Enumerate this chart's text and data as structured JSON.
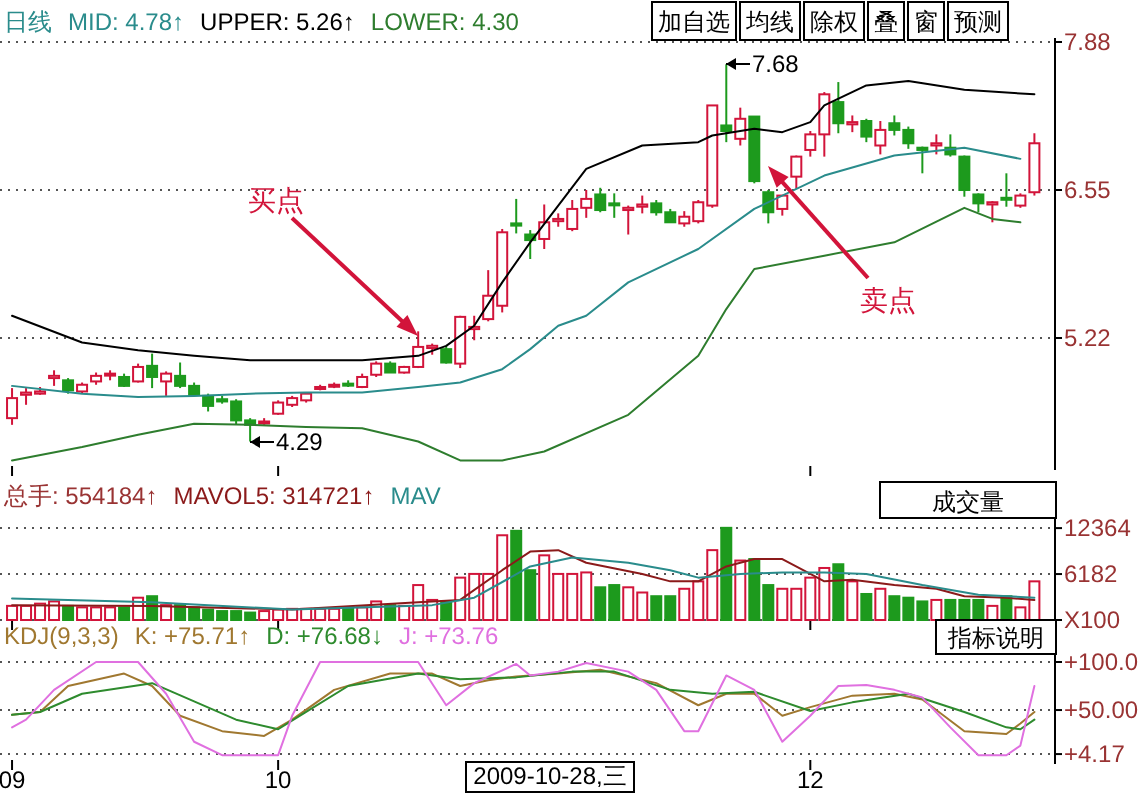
{
  "chart_data": [
    {
      "type": "candlestick",
      "title": "日线",
      "tick_labels": "y",
      "grid": "y",
      "categories": [
        "09",
        null,
        null,
        null,
        null,
        null,
        null,
        null,
        null,
        null,
        null,
        null,
        null,
        null,
        null,
        null,
        null,
        null,
        null,
        "10",
        null,
        null,
        null,
        null,
        null,
        null,
        null,
        null,
        null,
        null,
        null,
        null,
        null,
        null,
        null,
        null,
        null,
        null,
        null,
        null,
        null,
        null,
        null,
        null,
        null,
        null,
        null,
        null,
        null,
        null,
        null,
        null,
        null,
        null,
        null,
        null,
        null,
        "12",
        null,
        null,
        null,
        null,
        null,
        null,
        null,
        null,
        null,
        null,
        null,
        null,
        null,
        null,
        null,
        null
      ],
      "ylim": [
        4.07,
        7.88
      ],
      "yticks": [
        5.22,
        6.55,
        7.88
      ],
      "ohlc": [
        [
          4.5,
          4.77,
          4.44,
          4.68
        ],
        [
          4.71,
          4.77,
          4.62,
          4.73
        ],
        [
          4.72,
          4.78,
          4.71,
          4.74
        ],
        [
          4.86,
          4.93,
          4.79,
          4.88
        ],
        [
          4.84,
          4.86,
          4.72,
          4.75
        ],
        [
          4.74,
          4.82,
          4.72,
          4.8
        ],
        [
          4.83,
          4.91,
          4.8,
          4.88
        ],
        [
          4.89,
          4.93,
          4.84,
          4.9
        ],
        [
          4.87,
          4.9,
          4.78,
          4.79
        ],
        [
          4.83,
          4.99,
          4.82,
          4.96
        ],
        [
          4.97,
          5.08,
          4.77,
          4.87
        ],
        [
          4.83,
          4.92,
          4.7,
          4.9
        ],
        [
          4.88,
          5.0,
          4.77,
          4.79
        ],
        [
          4.79,
          4.82,
          4.7,
          4.71
        ],
        [
          4.7,
          4.72,
          4.56,
          4.61
        ],
        [
          4.67,
          4.7,
          4.63,
          4.65
        ],
        [
          4.65,
          4.67,
          4.44,
          4.48
        ],
        [
          4.48,
          4.5,
          4.29,
          4.44
        ],
        [
          4.46,
          4.5,
          4.44,
          4.47
        ],
        [
          4.54,
          4.66,
          4.53,
          4.64
        ],
        [
          4.62,
          4.7,
          4.6,
          4.68
        ],
        [
          4.66,
          4.72,
          4.64,
          4.72
        ],
        [
          4.77,
          4.8,
          4.75,
          4.78
        ],
        [
          4.79,
          4.82,
          4.77,
          4.8
        ],
        [
          4.81,
          4.84,
          4.78,
          4.8
        ],
        [
          4.78,
          4.9,
          4.77,
          4.87
        ],
        [
          4.89,
          5.01,
          4.87,
          4.99
        ],
        [
          4.99,
          5.01,
          4.91,
          4.91
        ],
        [
          4.91,
          4.97,
          4.9,
          4.96
        ],
        [
          4.96,
          5.28,
          4.95,
          5.14
        ],
        [
          5.13,
          5.17,
          5.07,
          5.15
        ],
        [
          5.12,
          5.15,
          4.99,
          5.0
        ],
        [
          4.99,
          5.42,
          4.95,
          5.41
        ],
        [
          5.3,
          5.42,
          5.2,
          5.32
        ],
        [
          5.39,
          5.83,
          5.37,
          5.6
        ],
        [
          5.51,
          6.2,
          5.45,
          6.17
        ],
        [
          6.25,
          6.47,
          6.16,
          6.23
        ],
        [
          6.15,
          6.19,
          5.93,
          6.1
        ],
        [
          6.11,
          6.42,
          6.02,
          6.26
        ],
        [
          6.27,
          6.34,
          6.22,
          6.29
        ],
        [
          6.2,
          6.46,
          6.18,
          6.38
        ],
        [
          6.39,
          6.55,
          6.3,
          6.47
        ],
        [
          6.51,
          6.57,
          6.35,
          6.37
        ],
        [
          6.43,
          6.52,
          6.3,
          6.42
        ],
        [
          6.37,
          6.41,
          6.15,
          6.39
        ],
        [
          6.4,
          6.5,
          6.34,
          6.42
        ],
        [
          6.43,
          6.46,
          6.32,
          6.35
        ],
        [
          6.35,
          6.38,
          6.26,
          6.26
        ],
        [
          6.25,
          6.36,
          6.22,
          6.31
        ],
        [
          6.27,
          6.46,
          6.25,
          6.44
        ],
        [
          6.41,
          7.31,
          6.39,
          7.31
        ],
        [
          7.13,
          7.68,
          6.98,
          7.08
        ],
        [
          7.01,
          7.29,
          6.95,
          7.19
        ],
        [
          7.21,
          7.21,
          6.61,
          6.63
        ],
        [
          6.53,
          6.55,
          6.25,
          6.35
        ],
        [
          6.38,
          6.5,
          6.32,
          6.5
        ],
        [
          6.67,
          6.86,
          6.56,
          6.85
        ],
        [
          6.91,
          7.08,
          6.85,
          7.05
        ],
        [
          7.05,
          7.43,
          6.85,
          7.41
        ],
        [
          7.34,
          7.52,
          7.06,
          7.15
        ],
        [
          7.14,
          7.22,
          7.07,
          7.16
        ],
        [
          7.17,
          7.19,
          6.98,
          7.03
        ],
        [
          6.95,
          7.17,
          6.87,
          7.09
        ],
        [
          7.15,
          7.22,
          7.04,
          7.09
        ],
        [
          7.09,
          7.12,
          6.92,
          6.97
        ],
        [
          6.93,
          6.94,
          6.7,
          6.91
        ],
        [
          6.95,
          7.05,
          6.87,
          6.97
        ],
        [
          6.93,
          7.05,
          6.85,
          6.87
        ],
        [
          6.85,
          6.86,
          6.49,
          6.55
        ],
        [
          6.51,
          6.52,
          6.35,
          6.43
        ],
        [
          6.42,
          6.45,
          6.26,
          6.44
        ],
        [
          6.48,
          6.7,
          6.4,
          6.47
        ],
        [
          6.41,
          6.52,
          6.39,
          6.5
        ],
        [
          6.53,
          7.06,
          6.5,
          6.97
        ]
      ],
      "colors": [
        "#d2143a",
        "#d2143a",
        "#d2143a",
        "#d2143a",
        "#1d9a1d",
        "#d2143a",
        "#d2143a",
        "#d2143a",
        "#1d9a1d",
        "#d2143a",
        "#1d9a1d",
        "#d2143a",
        "#1d9a1d",
        "#1d9a1d",
        "#1d9a1d",
        "#1d9a1d",
        "#1d9a1d",
        "#1d9a1d",
        "#d2143a",
        "#d2143a",
        "#d2143a",
        "#d2143a",
        "#d2143a",
        "#d2143a",
        "#1d9a1d",
        "#d2143a",
        "#d2143a",
        "#1d9a1d",
        "#d2143a",
        "#d2143a",
        "#d2143a",
        "#1d9a1d",
        "#d2143a",
        "#d2143a",
        "#d2143a",
        "#d2143a",
        "#1d9a1d",
        "#1d9a1d",
        "#d2143a",
        "#d2143a",
        "#d2143a",
        "#d2143a",
        "#1d9a1d",
        "#1d9a1d",
        "#d2143a",
        "#d2143a",
        "#1d9a1d",
        "#1d9a1d",
        "#d2143a",
        "#d2143a",
        "#d2143a",
        "#1d9a1d",
        "#d2143a",
        "#1d9a1d",
        "#1d9a1d",
        "#d2143a",
        "#d2143a",
        "#d2143a",
        "#d2143a",
        "#1d9a1d",
        "#d2143a",
        "#1d9a1d",
        "#d2143a",
        "#1d9a1d",
        "#1d9a1d",
        "#1d9a1d",
        "#d2143a",
        "#1d9a1d",
        "#1d9a1d",
        "#1d9a1d",
        "#d2143a",
        "#1d9a1d",
        "#d2143a",
        "#d2143a"
      ],
      "series": [
        {
          "type": "line",
          "color": "#000000",
          "values": [
            5.42,
            null,
            null,
            null,
            null,
            5.18,
            null,
            null,
            null,
            5.11,
            null,
            null,
            null,
            5.06,
            null,
            null,
            null,
            5.02,
            null,
            null,
            null,
            5.02,
            null,
            null,
            null,
            5.02,
            null,
            null,
            null,
            5.06,
            null,
            5.15,
            null,
            5.33,
            null,
            5.72,
            null,
            6.08,
            null,
            6.41,
            null,
            6.74,
            null,
            null,
            null,
            6.95,
            null,
            null,
            null,
            6.98,
            7.04,
            null,
            null,
            7.1,
            null,
            7.07,
            null,
            7.16,
            7.31,
            null,
            null,
            7.49,
            null,
            null,
            7.53,
            null,
            null,
            null,
            7.45,
            null,
            null,
            null,
            null,
            7.41
          ]
        },
        {
          "type": "line",
          "color": "#2a8c8c",
          "values": [
            4.79,
            null,
            null,
            null,
            null,
            4.72,
            null,
            null,
            null,
            4.69,
            null,
            null,
            null,
            4.7,
            null,
            null,
            null,
            4.72,
            null,
            null,
            null,
            4.73,
            null,
            null,
            null,
            4.73,
            null,
            null,
            null,
            4.78,
            null,
            null,
            4.82,
            null,
            null,
            4.94,
            null,
            5.12,
            null,
            5.33,
            null,
            5.42,
            null,
            null,
            5.72,
            null,
            null,
            null,
            null,
            6.02,
            null,
            null,
            null,
            6.38,
            null,
            null,
            null,
            null,
            6.68,
            null,
            null,
            null,
            null,
            6.86,
            null,
            null,
            null,
            null,
            6.93,
            null,
            null,
            null,
            6.83,
            null
          ]
        },
        {
          "type": "line",
          "color": "#2e7d2e",
          "values": [
            4.12,
            null,
            null,
            null,
            null,
            4.24,
            null,
            null,
            null,
            4.35,
            null,
            null,
            null,
            4.45,
            null,
            null,
            null,
            4.44,
            null,
            null,
            null,
            4.42,
            null,
            null,
            null,
            4.41,
            null,
            null,
            null,
            4.29,
            null,
            null,
            4.12,
            null,
            null,
            4.12,
            null,
            null,
            4.2,
            null,
            null,
            null,
            null,
            null,
            4.53,
            null,
            null,
            null,
            null,
            5.06,
            null,
            5.48,
            null,
            5.84,
            null,
            null,
            null,
            null,
            5.96,
            null,
            null,
            null,
            null,
            6.08,
            null,
            null,
            null,
            null,
            6.39,
            null,
            6.29,
            null,
            6.26,
            null
          ]
        }
      ],
      "annotations": [
        "MID: 4.78↑",
        "UPPER: 5.26↑",
        "LOWER: 4.30",
        "加自选",
        "均线",
        "除权",
        "叠",
        "窗",
        "预测",
        "7.68",
        "4.29",
        "买点",
        "卖点"
      ]
    },
    {
      "type": "bar",
      "tick_labels": "y",
      "grid": "y",
      "categories": [
        "09",
        null,
        null,
        null,
        null,
        null,
        null,
        null,
        null,
        null,
        null,
        null,
        null,
        null,
        null,
        null,
        null,
        null,
        null,
        "10",
        null,
        null,
        null,
        null,
        null,
        null,
        null,
        null,
        null,
        null,
        null,
        null,
        null,
        null,
        null,
        null,
        null,
        null,
        null,
        null,
        null,
        null,
        null,
        null,
        null,
        null,
        null,
        null,
        null,
        null,
        null,
        null,
        null,
        null,
        null,
        null,
        null,
        "12",
        null,
        null,
        null,
        null,
        null,
        null,
        null,
        null,
        null,
        null,
        null,
        null,
        null,
        null,
        null,
        null
      ],
      "ylim": [
        0,
        14800
      ],
      "yticks": [
        {
          "value": 0,
          "label": "X100"
        },
        6182,
        12364
      ],
      "series": [
        {
          "type": "bar",
          "values": [
            1900,
            1900,
            2200,
            2500,
            1900,
            1700,
            1700,
            1700,
            1700,
            3000,
            3200,
            2000,
            2000,
            1700,
            1400,
            1200,
            1200,
            1000,
            1200,
            1400,
            1500,
            1500,
            1500,
            1500,
            1500,
            1700,
            2500,
            2000,
            1900,
            4700,
            2700,
            2500,
            5700,
            6200,
            6200,
            11400,
            12000,
            6700,
            8700,
            6200,
            6200,
            6400,
            4400,
            4700,
            4400,
            3700,
            3200,
            3200,
            4200,
            5200,
            9400,
            12400,
            8000,
            8200,
            4700,
            4200,
            4200,
            5700,
            7000,
            7500,
            5200,
            3500,
            4200,
            3200,
            3000,
            2500,
            2700,
            2700,
            2700,
            2700,
            1900,
            3200,
            1700,
            5200
          ],
          "colors": [
            "#d2143a",
            "#d2143a",
            "#d2143a",
            "#d2143a",
            "#1d9a1d",
            "#d2143a",
            "#d2143a",
            "#d2143a",
            "#1d9a1d",
            "#d2143a",
            "#1d9a1d",
            "#d2143a",
            "#1d9a1d",
            "#1d9a1d",
            "#1d9a1d",
            "#1d9a1d",
            "#1d9a1d",
            "#1d9a1d",
            "#d2143a",
            "#d2143a",
            "#d2143a",
            "#d2143a",
            "#d2143a",
            "#d2143a",
            "#1d9a1d",
            "#d2143a",
            "#d2143a",
            "#1d9a1d",
            "#d2143a",
            "#d2143a",
            "#d2143a",
            "#1d9a1d",
            "#d2143a",
            "#d2143a",
            "#d2143a",
            "#d2143a",
            "#1d9a1d",
            "#1d9a1d",
            "#d2143a",
            "#d2143a",
            "#d2143a",
            "#d2143a",
            "#1d9a1d",
            "#1d9a1d",
            "#d2143a",
            "#d2143a",
            "#1d9a1d",
            "#1d9a1d",
            "#d2143a",
            "#d2143a",
            "#d2143a",
            "#1d9a1d",
            "#d2143a",
            "#1d9a1d",
            "#1d9a1d",
            "#d2143a",
            "#d2143a",
            "#d2143a",
            "#d2143a",
            "#1d9a1d",
            "#d2143a",
            "#1d9a1d",
            "#d2143a",
            "#1d9a1d",
            "#1d9a1d",
            "#1d9a1d",
            "#d2143a",
            "#1d9a1d",
            "#1d9a1d",
            "#1d9a1d",
            "#d2143a",
            "#1d9a1d",
            "#d2143a",
            "#d2143a"
          ]
        },
        {
          "type": "line",
          "color": "#8b1a1a",
          "values": [
            2000,
            null,
            null,
            null,
            null,
            null,
            null,
            null,
            null,
            null,
            1900,
            null,
            null,
            null,
            null,
            null,
            null,
            null,
            null,
            null,
            1400,
            null,
            null,
            null,
            null,
            null,
            null,
            null,
            null,
            2400,
            null,
            null,
            2700,
            null,
            null,
            6700,
            null,
            9200,
            null,
            9400,
            null,
            7700,
            null,
            null,
            null,
            6200,
            null,
            5200,
            null,
            5200,
            null,
            7200,
            null,
            8200,
            null,
            8200,
            null,
            6200,
            5200,
            null,
            5400,
            null,
            null,
            4700,
            null,
            null,
            4200,
            null,
            3200,
            null,
            null,
            3000,
            null,
            2700
          ]
        },
        {
          "type": "line",
          "color": "#2a8c8c",
          "values": [
            2900,
            null,
            null,
            null,
            null,
            null,
            null,
            null,
            null,
            null,
            2400,
            null,
            null,
            null,
            null,
            null,
            null,
            null,
            null,
            null,
            1400,
            null,
            null,
            null,
            null,
            null,
            null,
            null,
            null,
            null,
            2000,
            null,
            null,
            3000,
            null,
            null,
            null,
            7200,
            null,
            null,
            8400,
            null,
            null,
            null,
            7700,
            null,
            null,
            6700,
            null,
            5700,
            null,
            null,
            6200,
            null,
            null,
            6400,
            null,
            null,
            6400,
            null,
            null,
            6200,
            null,
            null,
            null,
            4700,
            null,
            null,
            null,
            3400,
            null,
            null,
            null,
            3000
          ]
        }
      ],
      "annotations": [
        "总手: 554184↑",
        "MAVOL5: 314721↑",
        "MAV",
        "成交量"
      ]
    },
    {
      "type": "line",
      "grid": "y",
      "categories": [
        "09",
        null,
        null,
        null,
        null,
        null,
        null,
        null,
        null,
        null,
        null,
        null,
        null,
        null,
        null,
        null,
        null,
        null,
        null,
        "10",
        null,
        null,
        null,
        null,
        null,
        null,
        null,
        null,
        null,
        null,
        null,
        null,
        null,
        null,
        null,
        null,
        null,
        null,
        null,
        null,
        null,
        null,
        null,
        null,
        null,
        null,
        null,
        null,
        null,
        null,
        null,
        null,
        null,
        null,
        null,
        null,
        null,
        "12",
        null,
        null,
        null,
        null,
        null,
        null,
        null,
        null,
        null,
        null,
        null,
        null,
        null,
        null,
        null,
        null
      ],
      "ylim": [
        -2,
        112.5
      ],
      "yticks": [
        {
          "value": 4.17,
          "label": "+4.17"
        },
        {
          "value": 50,
          "label": "+50.00"
        },
        {
          "value": 100,
          "label": "+100.0"
        }
      ],
      "series": [
        {
          "color": "#a07830",
          "values": [
            45,
            null,
            48,
            null,
            75,
            null,
            null,
            null,
            88,
            null,
            75,
            null,
            44,
            null,
            null,
            28,
            null,
            null,
            23,
            null,
            40,
            null,
            null,
            71,
            null,
            null,
            null,
            88,
            null,
            null,
            88,
            null,
            75,
            null,
            81,
            null,
            85,
            null,
            null,
            88,
            null,
            null,
            92,
            null,
            null,
            null,
            78,
            null,
            null,
            55,
            null,
            67,
            null,
            67,
            null,
            44,
            null,
            53,
            null,
            null,
            65,
            null,
            null,
            67,
            null,
            61,
            null,
            null,
            28,
            null,
            null,
            25,
            36,
            48
          ]
        },
        {
          "color": "#2e8b2e",
          "values": [
            45,
            null,
            48,
            null,
            null,
            67,
            null,
            null,
            null,
            null,
            78,
            null,
            null,
            59,
            null,
            null,
            40,
            null,
            null,
            30,
            null,
            48,
            null,
            null,
            75,
            null,
            null,
            null,
            null,
            88,
            null,
            null,
            82,
            null,
            null,
            null,
            84,
            null,
            null,
            null,
            90,
            null,
            null,
            90,
            null,
            null,
            null,
            71,
            null,
            null,
            67,
            null,
            null,
            69,
            null,
            null,
            null,
            49,
            null,
            null,
            58,
            null,
            null,
            null,
            67,
            null,
            null,
            null,
            48,
            null,
            null,
            32,
            30,
            40
          ]
        },
        {
          "color": "#e070e0",
          "values": [
            32,
            40,
            null,
            71,
            null,
            null,
            100,
            null,
            null,
            100,
            null,
            67,
            null,
            17,
            null,
            3,
            null,
            null,
            null,
            3,
            44,
            null,
            100,
            null,
            null,
            null,
            null,
            null,
            null,
            100,
            null,
            55,
            null,
            78,
            null,
            null,
            98,
            86,
            null,
            90,
            null,
            99,
            null,
            null,
            90,
            null,
            71,
            null,
            28,
            28,
            null,
            86,
            null,
            71,
            null,
            17,
            null,
            44,
            null,
            75,
            null,
            76,
            null,
            71,
            null,
            63,
            null,
            32,
            null,
            3,
            null,
            3,
            13,
            75
          ]
        }
      ],
      "annotations": [
        "KDJ(9,3,3)",
        "K: +75.71↑",
        "D: +76.68↓",
        "J: +73.76",
        "指标说明",
        "2009-10-28,三"
      ]
    }
  ]
}
